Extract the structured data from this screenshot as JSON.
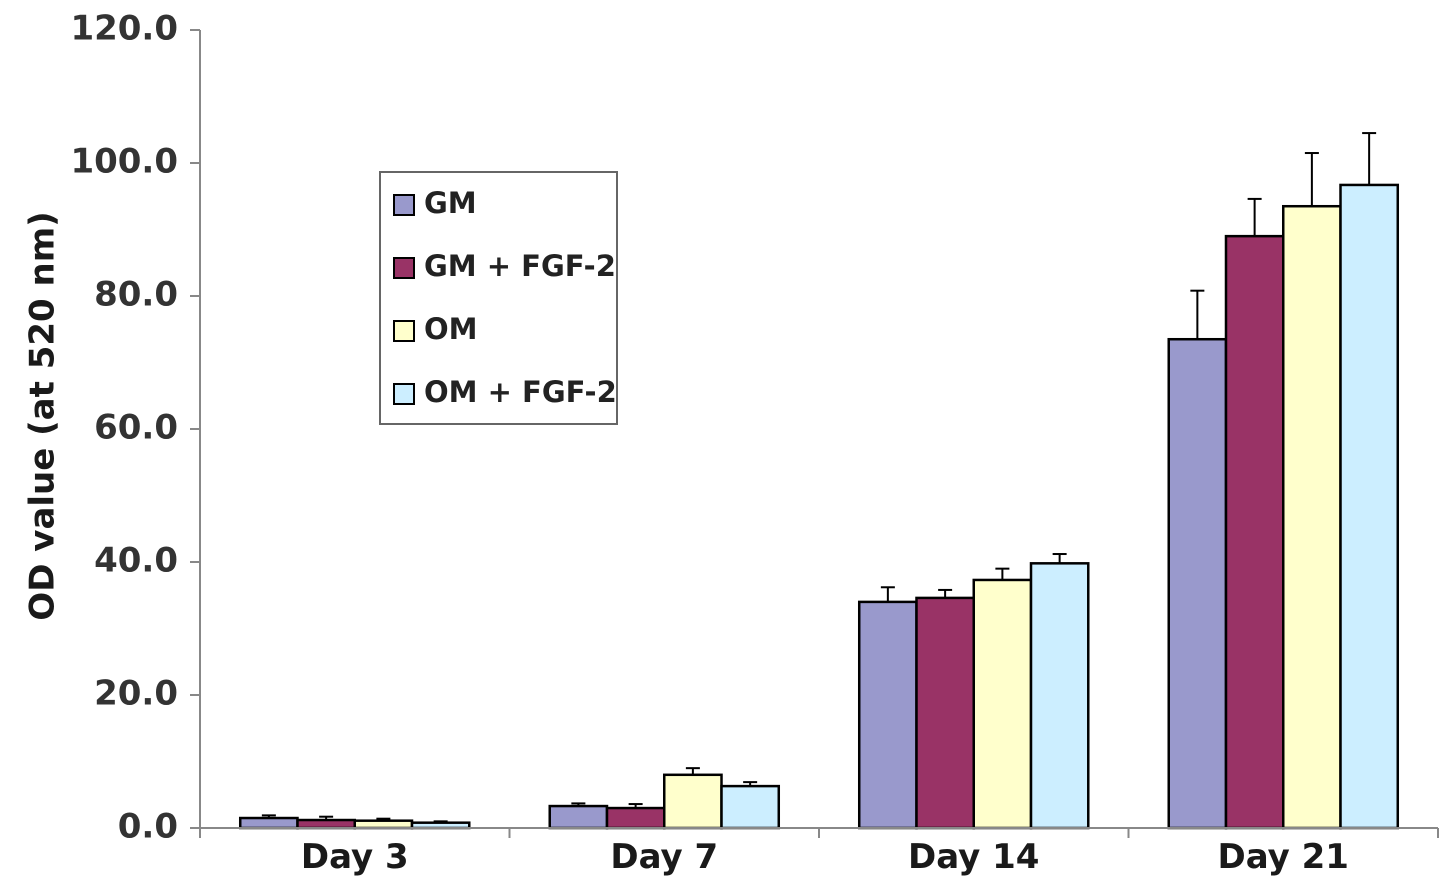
{
  "chart_data": {
    "type": "bar",
    "title": "",
    "xlabel": "",
    "ylabel": "OD value (at 520 nm)",
    "ylim": [
      0,
      120
    ],
    "yticks": [
      "0.0",
      "20.0",
      "40.0",
      "60.0",
      "80.0",
      "100.0",
      "120.0"
    ],
    "grid": false,
    "legend_position": "upper-left",
    "categories": [
      "Day 3",
      "Day 7",
      "Day 14",
      "Day 21"
    ],
    "series": [
      {
        "name": "GM",
        "color": "#9999cc",
        "values": [
          1.5,
          3.3,
          34.0,
          73.5
        ],
        "errors": [
          0.4,
          0.4,
          2.2,
          7.3
        ]
      },
      {
        "name": "GM + FGF-2",
        "color": "#993366",
        "values": [
          1.2,
          3.0,
          34.6,
          89.0
        ],
        "errors": [
          0.5,
          0.6,
          1.2,
          5.6
        ]
      },
      {
        "name": "OM",
        "color": "#ffffcc",
        "values": [
          1.1,
          8.0,
          37.3,
          93.5
        ],
        "errors": [
          0.3,
          1.0,
          1.7,
          8.0
        ]
      },
      {
        "name": "OM + FGF-2",
        "color": "#cceeff",
        "values": [
          0.8,
          6.3,
          39.8,
          96.7
        ],
        "errors": [
          0.2,
          0.6,
          1.4,
          7.8
        ]
      }
    ]
  }
}
